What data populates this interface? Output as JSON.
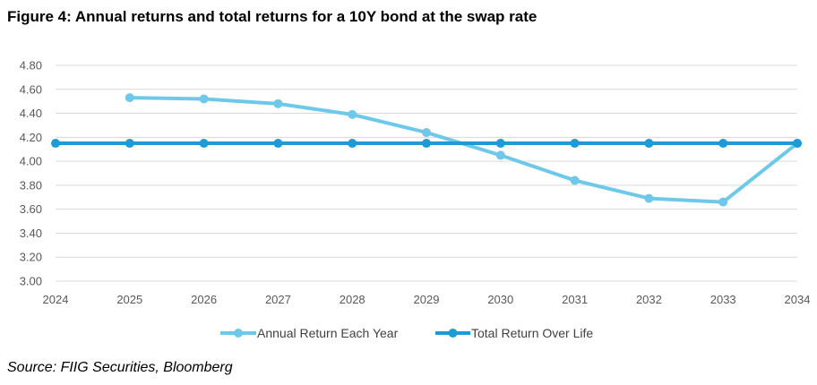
{
  "title": "Figure 4: Annual returns and total returns for a 10Y bond at the swap rate",
  "source": "Source: FIIG Securities, Bloomberg",
  "colors": {
    "annual": "#6EC8EA",
    "total": "#1E9BD7",
    "grid": "#D9D9D9"
  },
  "chart_data": {
    "type": "line",
    "title": "Figure 4: Annual returns and total returns for a 10Y bond at the swap rate",
    "x": [
      2024,
      2025,
      2026,
      2027,
      2028,
      2029,
      2030,
      2031,
      2032,
      2033,
      2034
    ],
    "xlim": [
      2024,
      2034
    ],
    "ylim": [
      3.0,
      4.8
    ],
    "yticks": [
      "3.00",
      "3.20",
      "3.40",
      "3.60",
      "3.80",
      "4.00",
      "4.20",
      "4.40",
      "4.60",
      "4.80"
    ],
    "xticks": [
      "2024",
      "2025",
      "2026",
      "2027",
      "2028",
      "2029",
      "2030",
      "2031",
      "2032",
      "2033",
      "2034"
    ],
    "grid": true,
    "legend": "bottom",
    "series": [
      {
        "name": "Annual Return Each Year",
        "x": [
          2025,
          2026,
          2027,
          2028,
          2029,
          2030,
          2031,
          2032,
          2033,
          2034
        ],
        "values": [
          4.53,
          4.52,
          4.48,
          4.39,
          4.24,
          4.05,
          3.84,
          3.69,
          3.66,
          4.15
        ]
      },
      {
        "name": "Total Return Over Life",
        "x": [
          2024,
          2025,
          2026,
          2027,
          2028,
          2029,
          2030,
          2031,
          2032,
          2033,
          2034
        ],
        "values": [
          4.15,
          4.15,
          4.15,
          4.15,
          4.15,
          4.15,
          4.15,
          4.15,
          4.15,
          4.15,
          4.15
        ]
      }
    ]
  }
}
